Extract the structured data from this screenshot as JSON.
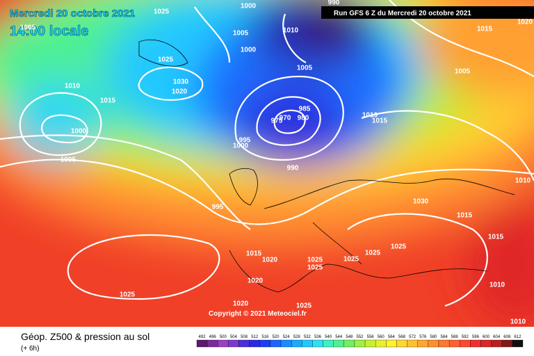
{
  "title_date": "Mercredi 20 octobre 2021",
  "title_time": "14:00 locale",
  "run_info": "Run GFS 6 Z du Mercredi 20 octobre 2021",
  "copyright": "Copyright © 2021 Meteociel.fr",
  "caption": "Géop. Z500 & pression au sol",
  "lead_time": "(+ 6h)",
  "legend": {
    "values": [
      492,
      496,
      500,
      504,
      508,
      512,
      516,
      520,
      524,
      528,
      532,
      536,
      540,
      544,
      548,
      552,
      556,
      560,
      564,
      568,
      572,
      576,
      580,
      584,
      588,
      592,
      596,
      600,
      604,
      608,
      612
    ],
    "colors": [
      "#5a1a6e",
      "#7a2a9a",
      "#9a40c0",
      "#7a3ad0",
      "#4a30d8",
      "#2a2ae0",
      "#1a40f0",
      "#1a66ff",
      "#1a8cff",
      "#1aaaff",
      "#20c8ff",
      "#30e0f0",
      "#40f0c0",
      "#50f090",
      "#70f060",
      "#a0f040",
      "#c8f030",
      "#e8f030",
      "#fff030",
      "#ffd830",
      "#ffc030",
      "#ffa830",
      "#ff9030",
      "#ff7830",
      "#ff6030",
      "#ff4830",
      "#f03030",
      "#d82828",
      "#b82020",
      "#801818",
      "#101010"
    ]
  },
  "isobar_labels": [
    "1005",
    "1025",
    "1000",
    "1005",
    "1000",
    "1010",
    "990",
    "1015",
    "1005",
    "1025",
    "1030",
    "1020",
    "1010",
    "1015",
    "1000",
    "1005",
    "1005",
    "985",
    "980",
    "970",
    "975",
    "995",
    "1000",
    "990",
    "1010",
    "1015",
    "1030",
    "1015",
    "1025",
    "1025",
    "1025",
    "1015",
    "1010",
    "995",
    "1015",
    "1020",
    "1025",
    "1025",
    "1020",
    "1025",
    "1020",
    "1025",
    "1010",
    "1010",
    "1020"
  ]
}
